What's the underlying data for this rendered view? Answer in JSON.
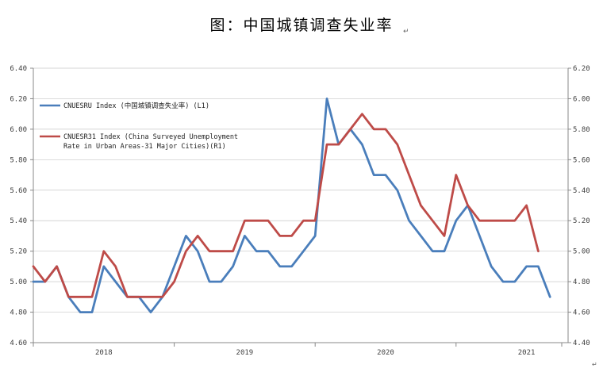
{
  "title": "图：中国城镇调查失业率",
  "title_mark": "↵",
  "corner_mark": "↵",
  "colors": {
    "series_left": "#4a7ebb",
    "series_right": "#be4b48"
  },
  "chart_data": {
    "type": "line",
    "x_labels": [
      "2018",
      "2019",
      "2020",
      "2021"
    ],
    "x_label_months": [
      6,
      18,
      30,
      42
    ],
    "x_tick_months": [
      0,
      12,
      24,
      36,
      45
    ],
    "left_axis": {
      "ylim": [
        4.6,
        6.4
      ],
      "ticks": [
        "4.60",
        "4.80",
        "5.00",
        "5.20",
        "5.40",
        "5.60",
        "5.80",
        "6.00",
        "6.20",
        "6.40"
      ]
    },
    "right_axis": {
      "ylim": [
        4.4,
        6.2
      ],
      "ticks": [
        "4.40",
        "4.60",
        "4.80",
        "5.00",
        "5.20",
        "5.40",
        "5.60",
        "5.80",
        "6.00",
        "6.20"
      ]
    },
    "grid": true,
    "legend_position": "top-left",
    "series": [
      {
        "name": "CNUESRU Index (中国城镇调查失业率) (L1)",
        "axis": "left",
        "start": "2017-12",
        "values": [
          5.0,
          5.0,
          5.1,
          4.9,
          4.8,
          4.8,
          5.1,
          5.0,
          4.9,
          4.9,
          4.8,
          4.9,
          5.1,
          5.3,
          5.2,
          5.0,
          5.0,
          5.1,
          5.3,
          5.2,
          5.2,
          5.1,
          5.1,
          5.2,
          5.3,
          6.2,
          5.9,
          6.0,
          5.9,
          5.7,
          5.7,
          5.6,
          5.4,
          5.3,
          5.2,
          5.2,
          5.4,
          5.5,
          5.3,
          5.1,
          5.0,
          5.0,
          5.1,
          5.1,
          4.9
        ]
      },
      {
        "name": "CNUESR31 Index (China Surveyed Unemployment Rate in Urban Areas-31 Major Cities)(R1)",
        "axis": "right",
        "start": "2017-12",
        "values": [
          4.9,
          4.8,
          4.9,
          4.7,
          4.7,
          4.7,
          5.0,
          4.9,
          4.7,
          4.7,
          4.7,
          4.7,
          4.8,
          5.0,
          5.1,
          5.0,
          5.0,
          5.0,
          5.2,
          5.2,
          5.2,
          5.1,
          5.1,
          5.2,
          5.2,
          5.7,
          5.7,
          5.8,
          5.9,
          5.8,
          5.8,
          5.7,
          5.5,
          5.3,
          5.2,
          5.1,
          5.5,
          5.3,
          5.2,
          5.2,
          5.2,
          5.2,
          5.3,
          5.0
        ]
      }
    ],
    "legend": {
      "entry1_line1": "CNUESRU Index (中国城镇调查失业率) (L1)",
      "entry2_line1": "CNUESR31 Index (China Surveyed Unemployment",
      "entry2_line2": "Rate in Urban Areas-31 Major Cities)(R1)"
    }
  }
}
